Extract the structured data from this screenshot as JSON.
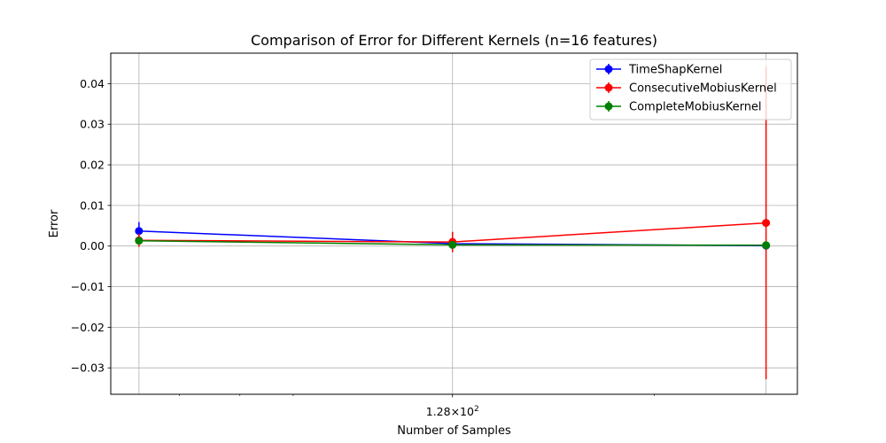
{
  "chart_data": {
    "type": "line",
    "title": "Comparison of Error for Different Kernels (n=16 features)",
    "xlabel": "Number of Samples",
    "ylabel": "Error",
    "x_scale": "log",
    "x": [
      64,
      128,
      256
    ],
    "xtick_labels": [
      {
        "value": 128,
        "base": "1.28",
        "mult": "×",
        "exp_base": "10",
        "exp": "2"
      }
    ],
    "yticks": [
      0.04,
      0.03,
      0.02,
      0.01,
      0.0,
      -0.01,
      -0.02,
      -0.03
    ],
    "ytick_labels": [
      "0.04",
      "0.03",
      "0.02",
      "0.01",
      "0.00",
      "−0.01",
      "−0.02",
      "−0.03"
    ],
    "ylim": [
      -0.0365,
      0.0475
    ],
    "grid": true,
    "legend_position": "top-right",
    "series": [
      {
        "name": "TimeShapKernel",
        "color": "#0000ff",
        "values": [
          0.0037,
          0.0006,
          0.0001
        ],
        "errors": [
          0.0022,
          0.0005,
          0.0002
        ]
      },
      {
        "name": "ConsecutiveMobiusKernel",
        "color": "#ff0000",
        "values": [
          0.0014,
          0.001,
          0.0057
        ],
        "errors": [
          0.0016,
          0.0025,
          0.0385
        ]
      },
      {
        "name": "CompleteMobiusKernel",
        "color": "#008000",
        "values": [
          0.0013,
          0.0003,
          0.0002
        ],
        "errors": [
          0.0004,
          0.0002,
          0.0002
        ]
      }
    ]
  }
}
